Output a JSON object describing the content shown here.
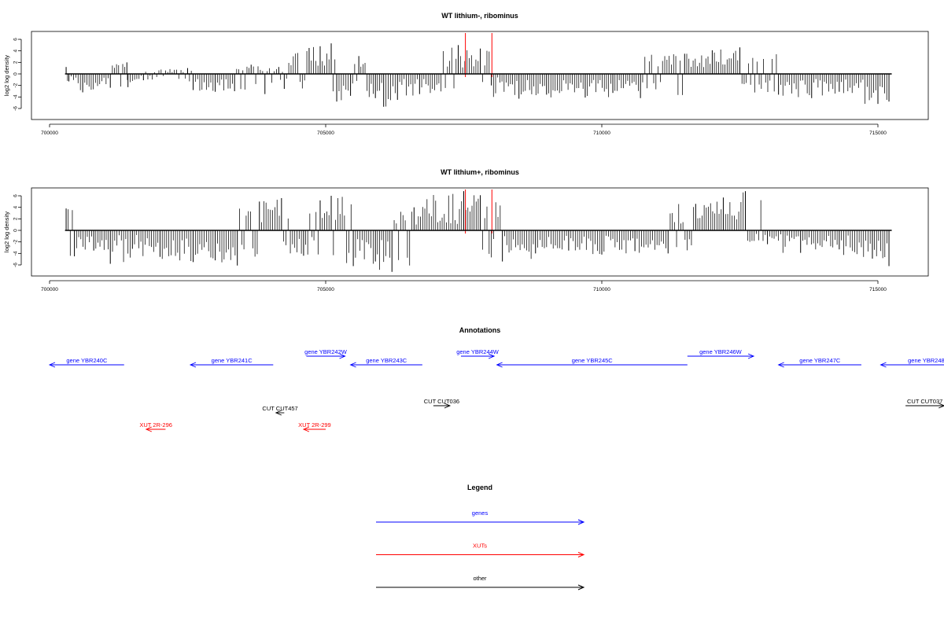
{
  "chart_data": [
    {
      "type": "bar",
      "title": "WT lithium-, ribominus",
      "ylabel": "log2 log density",
      "xlabel": "",
      "x_ticks": [
        700000,
        705000,
        710000,
        715000
      ],
      "y_ticks": [
        -6,
        -4,
        -2,
        0,
        2,
        4,
        6
      ],
      "xlim": [
        699700,
        715900
      ],
      "ylim": [
        -7.5,
        7.5
      ],
      "grid": false,
      "series": [
        {
          "values": [
            {
              "x": 700300,
              "y": 1.2
            },
            {
              "x": 700350,
              "y": -1.3
            },
            {
              "x": 700600,
              "y": -3.2
            },
            {
              "x": 701100,
              "y": -2.4
            },
            {
              "x": 701400,
              "y": 2.0
            },
            {
              "x": 701420,
              "y": -2.3
            },
            {
              "x": 701700,
              "y": -1.1
            },
            {
              "x": 702500,
              "y": 1.0
            },
            {
              "x": 702600,
              "y": -2.8
            },
            {
              "x": 703000,
              "y": -3.1
            },
            {
              "x": 703350,
              "y": -3.0
            },
            {
              "x": 703650,
              "y": 1.6
            },
            {
              "x": 703900,
              "y": -3.5
            },
            {
              "x": 704150,
              "y": 1.2
            },
            {
              "x": 704250,
              "y": -2.6
            },
            {
              "x": 704700,
              "y": 4.5
            },
            {
              "x": 704900,
              "y": 4.8
            },
            {
              "x": 705100,
              "y": 5.3
            },
            {
              "x": 705200,
              "y": -4.8
            },
            {
              "x": 705450,
              "y": -3.8
            },
            {
              "x": 705600,
              "y": 3.1
            },
            {
              "x": 705900,
              "y": -4.2
            },
            {
              "x": 706050,
              "y": -5.7
            },
            {
              "x": 706300,
              "y": -4.5
            },
            {
              "x": 706700,
              "y": -3.5
            },
            {
              "x": 707400,
              "y": 5.0
            },
            {
              "x": 707800,
              "y": 4.4
            },
            {
              "x": 708000,
              "y": -2.0
            },
            {
              "x": 708500,
              "y": -4.3
            },
            {
              "x": 709000,
              "y": -3.6
            },
            {
              "x": 709700,
              "y": -4.1
            },
            {
              "x": 710200,
              "y": -3.3
            },
            {
              "x": 710700,
              "y": -4.2
            },
            {
              "x": 711500,
              "y": 3.5
            },
            {
              "x": 712000,
              "y": 4.1
            },
            {
              "x": 712500,
              "y": 4.6
            },
            {
              "x": 713200,
              "y": -3.6
            },
            {
              "x": 713800,
              "y": -4.2
            },
            {
              "x": 714300,
              "y": -3.1
            },
            {
              "x": 715000,
              "y": -5.2
            },
            {
              "x": 715200,
              "y": -4.8
            }
          ]
        }
      ],
      "highlight_lines": [
        707530,
        708010
      ]
    },
    {
      "type": "bar",
      "title": "WT lithium+, ribominus",
      "ylabel": "log2 log density",
      "xlabel": "",
      "x_ticks": [
        700000,
        705000,
        710000,
        715000
      ],
      "y_ticks": [
        -6,
        -4,
        -2,
        0,
        2,
        4,
        6
      ],
      "xlim": [
        699700,
        715900
      ],
      "ylim": [
        -7.5,
        7.5
      ],
      "grid": false,
      "series": [
        {
          "values": [
            {
              "x": 700300,
              "y": 3.8
            },
            {
              "x": 700450,
              "y": -4.5
            },
            {
              "x": 700800,
              "y": -3.5
            },
            {
              "x": 701100,
              "y": -5.8
            },
            {
              "x": 701500,
              "y": -3.2
            },
            {
              "x": 702000,
              "y": -4.6
            },
            {
              "x": 702600,
              "y": -5.5
            },
            {
              "x": 703000,
              "y": -5.2
            },
            {
              "x": 703400,
              "y": -6.1
            },
            {
              "x": 703800,
              "y": 5.0
            },
            {
              "x": 704200,
              "y": 5.6
            },
            {
              "x": 704600,
              "y": -4.4
            },
            {
              "x": 704900,
              "y": 5.2
            },
            {
              "x": 705100,
              "y": 6.0
            },
            {
              "x": 705500,
              "y": -6.2
            },
            {
              "x": 705900,
              "y": -5.4
            },
            {
              "x": 706200,
              "y": -7.2
            },
            {
              "x": 706600,
              "y": 4.0
            },
            {
              "x": 707500,
              "y": 6.8
            },
            {
              "x": 707800,
              "y": 6.1
            },
            {
              "x": 708200,
              "y": -5.4
            },
            {
              "x": 708800,
              "y": -4.0
            },
            {
              "x": 709400,
              "y": -3.5
            },
            {
              "x": 710000,
              "y": -4.2
            },
            {
              "x": 710600,
              "y": -3.6
            },
            {
              "x": 711200,
              "y": -4.0
            },
            {
              "x": 711700,
              "y": 4.6
            },
            {
              "x": 712200,
              "y": 5.7
            },
            {
              "x": 712600,
              "y": 6.8
            },
            {
              "x": 713000,
              "y": -2.4
            },
            {
              "x": 713600,
              "y": -3.9
            },
            {
              "x": 714300,
              "y": -3.3
            },
            {
              "x": 714900,
              "y": -4.9
            },
            {
              "x": 715200,
              "y": -6.2
            }
          ]
        }
      ],
      "highlight_lines": [
        707530,
        708010
      ]
    }
  ],
  "annotations": {
    "title": "Annotations",
    "items": [
      {
        "label": "gene YBR240C",
        "group": "genes",
        "start": 701350,
        "end": 700000,
        "row": 1
      },
      {
        "label": "gene YBR241C",
        "group": "genes",
        "start": 704050,
        "end": 702550,
        "row": 1
      },
      {
        "label": "gene YBR242W",
        "group": "genes",
        "start": 704650,
        "end": 705350,
        "row": 0
      },
      {
        "label": "gene YBR243C",
        "group": "genes",
        "start": 706750,
        "end": 705450,
        "row": 1
      },
      {
        "label": "gene YBR244W",
        "group": "genes",
        "start": 707450,
        "end": 708050,
        "row": 0
      },
      {
        "label": "gene YBR245C",
        "group": "genes",
        "start": 711550,
        "end": 708100,
        "row": 1
      },
      {
        "label": "gene YBR246W",
        "group": "genes",
        "start": 711550,
        "end": 712750,
        "row": 0
      },
      {
        "label": "gene YBR247C",
        "group": "genes",
        "start": 714700,
        "end": 713200,
        "row": 1
      },
      {
        "label": "gene YBR248",
        "group": "genes",
        "start": 716700,
        "end": 715050,
        "row": 1
      },
      {
        "label": "CUT CUT036",
        "group": "other",
        "start": 706950,
        "end": 707250,
        "row": 2
      },
      {
        "label": "CUT CUT037",
        "group": "other",
        "start": 715500,
        "end": 716200,
        "row": 2
      },
      {
        "label": "CUT CUT457",
        "group": "other",
        "start": 704250,
        "end": 704100,
        "row": 3
      },
      {
        "label": "XUT 2R-296",
        "group": "XUTs",
        "start": 702100,
        "end": 701750,
        "row": 4
      },
      {
        "label": "XUT 2R-299",
        "group": "XUTs",
        "start": 705000,
        "end": 704600,
        "row": 4
      }
    ]
  },
  "legend": {
    "title": "Legend",
    "entries": [
      {
        "label": "genes",
        "color": "#0000ff"
      },
      {
        "label": "XUTs",
        "color": "#ff0000"
      },
      {
        "label": "other",
        "color": "#000000"
      }
    ]
  },
  "colors": {
    "genes": "#0000ff",
    "XUTs": "#ff0000",
    "other": "#000000",
    "highlight": "#ff0000",
    "bars": "#000000"
  }
}
